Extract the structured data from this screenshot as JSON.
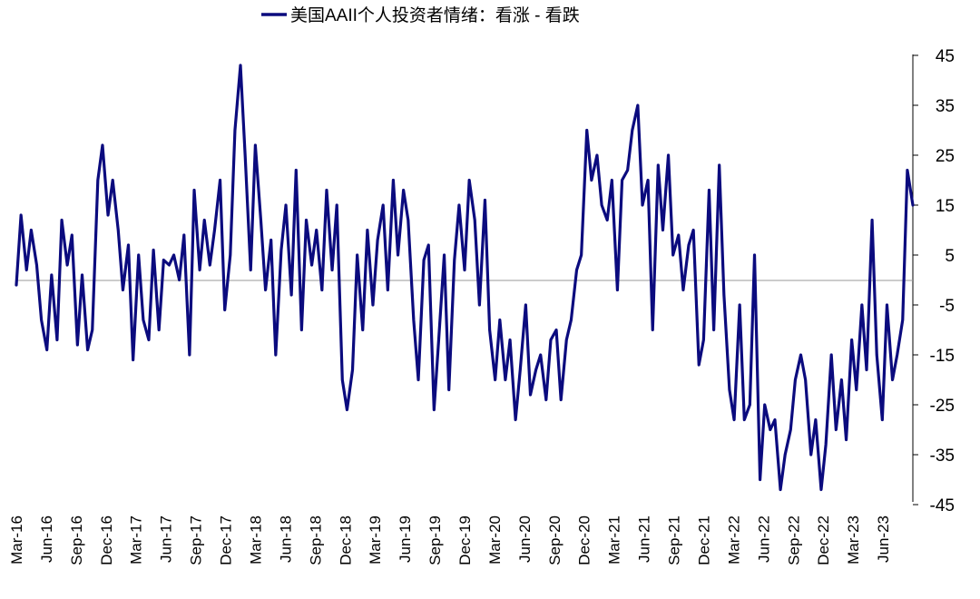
{
  "chart_data": {
    "type": "line",
    "title": "",
    "xlabel": "",
    "ylabel": "",
    "legend": {
      "position": "top-center",
      "entries": [
        "美国AAII个人投资者情绪：看涨 - 看跌"
      ]
    },
    "y_axis": {
      "position": "right",
      "ylim": [
        -45,
        45
      ],
      "ticks": [
        45,
        35,
        25,
        15,
        5,
        -5,
        -15,
        -25,
        -35,
        -45
      ]
    },
    "x_axis": {
      "range": [
        "2016-03",
        "2023-07"
      ],
      "tick_labels": [
        "Mar-16",
        "Jun-16",
        "Sep-16",
        "Dec-16",
        "Mar-17",
        "Jun-17",
        "Sep-17",
        "Dec-17",
        "Mar-18",
        "Jun-18",
        "Sep-18",
        "Dec-18",
        "Mar-19",
        "Jun-19",
        "Sep-19",
        "Dec-19",
        "Mar-20",
        "Jun-20",
        "Sep-20",
        "Dec-20",
        "Mar-21",
        "Jun-21",
        "Sep-21",
        "Dec-21",
        "Mar-22",
        "Jun-22",
        "Sep-22",
        "Dec-22",
        "Mar-23",
        "Jun-23"
      ]
    },
    "zero_line": true,
    "grid": false,
    "series": [
      {
        "name": "美国AAII个人投资者情绪：看涨 - 看跌",
        "color": "#0B0B7E",
        "x": [
          "2016-03-01",
          "2016-03-15",
          "2016-04-01",
          "2016-04-15",
          "2016-05-01",
          "2016-05-15",
          "2016-06-01",
          "2016-06-15",
          "2016-07-01",
          "2016-07-15",
          "2016-08-01",
          "2016-08-15",
          "2016-09-01",
          "2016-09-15",
          "2016-10-01",
          "2016-10-15",
          "2016-11-01",
          "2016-11-15",
          "2016-12-01",
          "2016-12-15",
          "2017-01-01",
          "2017-01-15",
          "2017-02-01",
          "2017-02-15",
          "2017-03-01",
          "2017-03-15",
          "2017-04-01",
          "2017-04-15",
          "2017-05-01",
          "2017-05-15",
          "2017-06-01",
          "2017-06-15",
          "2017-07-01",
          "2017-07-15",
          "2017-08-01",
          "2017-08-15",
          "2017-09-01",
          "2017-09-15",
          "2017-10-01",
          "2017-10-15",
          "2017-11-01",
          "2017-11-15",
          "2017-12-01",
          "2017-12-15",
          "2018-01-01",
          "2018-01-15",
          "2018-02-01",
          "2018-02-15",
          "2018-03-01",
          "2018-03-15",
          "2018-04-01",
          "2018-04-15",
          "2018-05-01",
          "2018-05-15",
          "2018-06-01",
          "2018-06-15",
          "2018-07-01",
          "2018-07-15",
          "2018-08-01",
          "2018-08-15",
          "2018-09-01",
          "2018-09-15",
          "2018-10-01",
          "2018-10-15",
          "2018-11-01",
          "2018-11-15",
          "2018-12-01",
          "2018-12-15",
          "2019-01-01",
          "2019-01-15",
          "2019-02-01",
          "2019-02-15",
          "2019-03-01",
          "2019-03-15",
          "2019-04-01",
          "2019-04-15",
          "2019-05-01",
          "2019-05-15",
          "2019-06-01",
          "2019-06-15",
          "2019-07-01",
          "2019-07-15",
          "2019-08-01",
          "2019-08-15",
          "2019-09-01",
          "2019-09-15",
          "2019-10-01",
          "2019-10-15",
          "2019-11-01",
          "2019-11-15",
          "2019-12-01",
          "2019-12-15",
          "2020-01-01",
          "2020-01-15",
          "2020-02-01",
          "2020-02-15",
          "2020-03-01",
          "2020-03-15",
          "2020-04-01",
          "2020-04-15",
          "2020-05-01",
          "2020-05-15",
          "2020-06-01",
          "2020-06-15",
          "2020-07-01",
          "2020-07-15",
          "2020-08-01",
          "2020-08-15",
          "2020-09-01",
          "2020-09-15",
          "2020-10-01",
          "2020-10-15",
          "2020-11-01",
          "2020-11-15",
          "2020-12-01",
          "2020-12-15",
          "2021-01-01",
          "2021-01-15",
          "2021-02-01",
          "2021-02-15",
          "2021-03-01",
          "2021-03-15",
          "2021-04-01",
          "2021-04-15",
          "2021-05-01",
          "2021-05-15",
          "2021-06-01",
          "2021-06-15",
          "2021-07-01",
          "2021-07-15",
          "2021-08-01",
          "2021-08-15",
          "2021-09-01",
          "2021-09-15",
          "2021-10-01",
          "2021-10-15",
          "2021-11-01",
          "2021-11-15",
          "2021-12-01",
          "2021-12-15",
          "2022-01-01",
          "2022-01-15",
          "2022-02-01",
          "2022-02-15",
          "2022-03-01",
          "2022-03-15",
          "2022-04-01",
          "2022-04-15",
          "2022-05-01",
          "2022-05-15",
          "2022-06-01",
          "2022-06-15",
          "2022-07-01",
          "2022-07-15",
          "2022-08-01",
          "2022-08-15",
          "2022-09-01",
          "2022-09-15",
          "2022-10-01",
          "2022-10-15",
          "2022-11-01",
          "2022-11-15",
          "2022-12-01",
          "2022-12-15",
          "2023-01-01",
          "2023-01-15",
          "2023-02-01",
          "2023-02-15",
          "2023-03-01",
          "2023-03-15",
          "2023-04-01",
          "2023-04-15",
          "2023-05-01",
          "2023-05-15",
          "2023-06-01",
          "2023-06-15",
          "2023-07-01"
        ],
        "values": [
          -1,
          13,
          2,
          10,
          3,
          -8,
          -14,
          1,
          -12,
          12,
          3,
          9,
          -13,
          1,
          -14,
          -10,
          20,
          27,
          13,
          20,
          10,
          -2,
          7,
          -16,
          5,
          -8,
          -12,
          6,
          -10,
          4,
          3,
          5,
          0,
          9,
          -15,
          18,
          2,
          12,
          3,
          10,
          20,
          -6,
          5,
          30,
          43,
          25,
          2,
          27,
          12,
          -2,
          8,
          -15,
          6,
          15,
          -3,
          22,
          -10,
          12,
          3,
          10,
          -2,
          18,
          2,
          15,
          -20,
          -26,
          -18,
          5,
          -10,
          10,
          -5,
          8,
          15,
          -2,
          20,
          5,
          18,
          12,
          -8,
          -20,
          4,
          7,
          -26,
          -12,
          5,
          -22,
          4,
          15,
          2,
          20,
          12,
          -5,
          16,
          -10,
          -20,
          -8,
          -20,
          -12,
          -28,
          -18,
          -5,
          -23,
          -18,
          -15,
          -24,
          -12,
          -10,
          -24,
          -12,
          -8,
          2,
          5,
          30,
          20,
          25,
          15,
          12,
          20,
          -2,
          20,
          22,
          30,
          35,
          15,
          20,
          -10,
          23,
          10,
          25,
          5,
          9,
          -2,
          7,
          10,
          -17,
          -12,
          18,
          -10,
          23,
          -3,
          -22,
          -28,
          -5,
          -28,
          -25,
          5,
          -40,
          -25,
          -30,
          -28,
          -42,
          -35,
          -30,
          -20,
          -15,
          -20,
          -35,
          -28,
          -42,
          -33,
          -15,
          -30,
          -20,
          -32,
          -12,
          -22,
          -5,
          -18,
          12,
          -15,
          -28,
          -5,
          -20,
          -15,
          -8,
          22,
          15
        ]
      }
    ]
  }
}
